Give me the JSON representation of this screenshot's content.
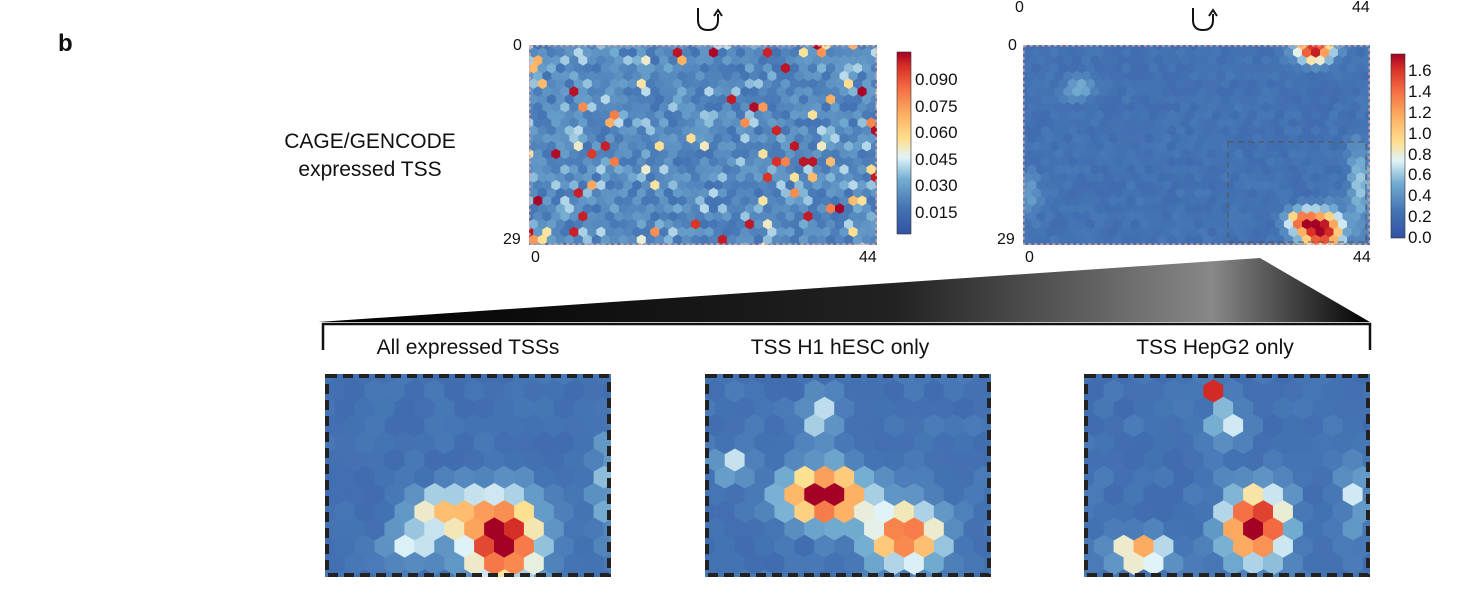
{
  "panel_letter": "b",
  "row_label_lines": [
    "CAGE/GENCODE",
    "expressed TSS"
  ],
  "chart_data": [
    {
      "type": "heatmap",
      "xlim": [
        0,
        44
      ],
      "ylim": [
        0,
        29
      ],
      "x_ticks": [
        "0",
        "44"
      ],
      "y_ticks": [
        "0",
        "29"
      ],
      "colorbar_ticks": [
        "0.090",
        "0.075",
        "0.060",
        "0.045",
        "0.030",
        "0.015"
      ],
      "colorbar_range": [
        0.005,
        0.1
      ],
      "pattern": "scattered"
    },
    {
      "type": "heatmap",
      "xlim": [
        0,
        44
      ],
      "ylim": [
        0,
        29
      ],
      "x_ticks": [
        "0",
        "44"
      ],
      "y_ticks": [
        "0",
        "29"
      ],
      "top_ticks": [
        "0",
        "44"
      ],
      "colorbar_ticks": [
        "1.6",
        "1.4",
        "1.2",
        "1.0",
        "0.8",
        "0.6",
        "0.4",
        "0.2",
        "0.0"
      ],
      "colorbar_range": [
        0.0,
        1.7
      ],
      "pattern": "clustered"
    }
  ],
  "zoom_panels": [
    {
      "title": "All expressed TSSs",
      "pattern": "all"
    },
    {
      "title": "TSS H1 hESC only",
      "pattern": "h1"
    },
    {
      "title": "TSS HepG2 only",
      "pattern": "hepg2"
    }
  ]
}
